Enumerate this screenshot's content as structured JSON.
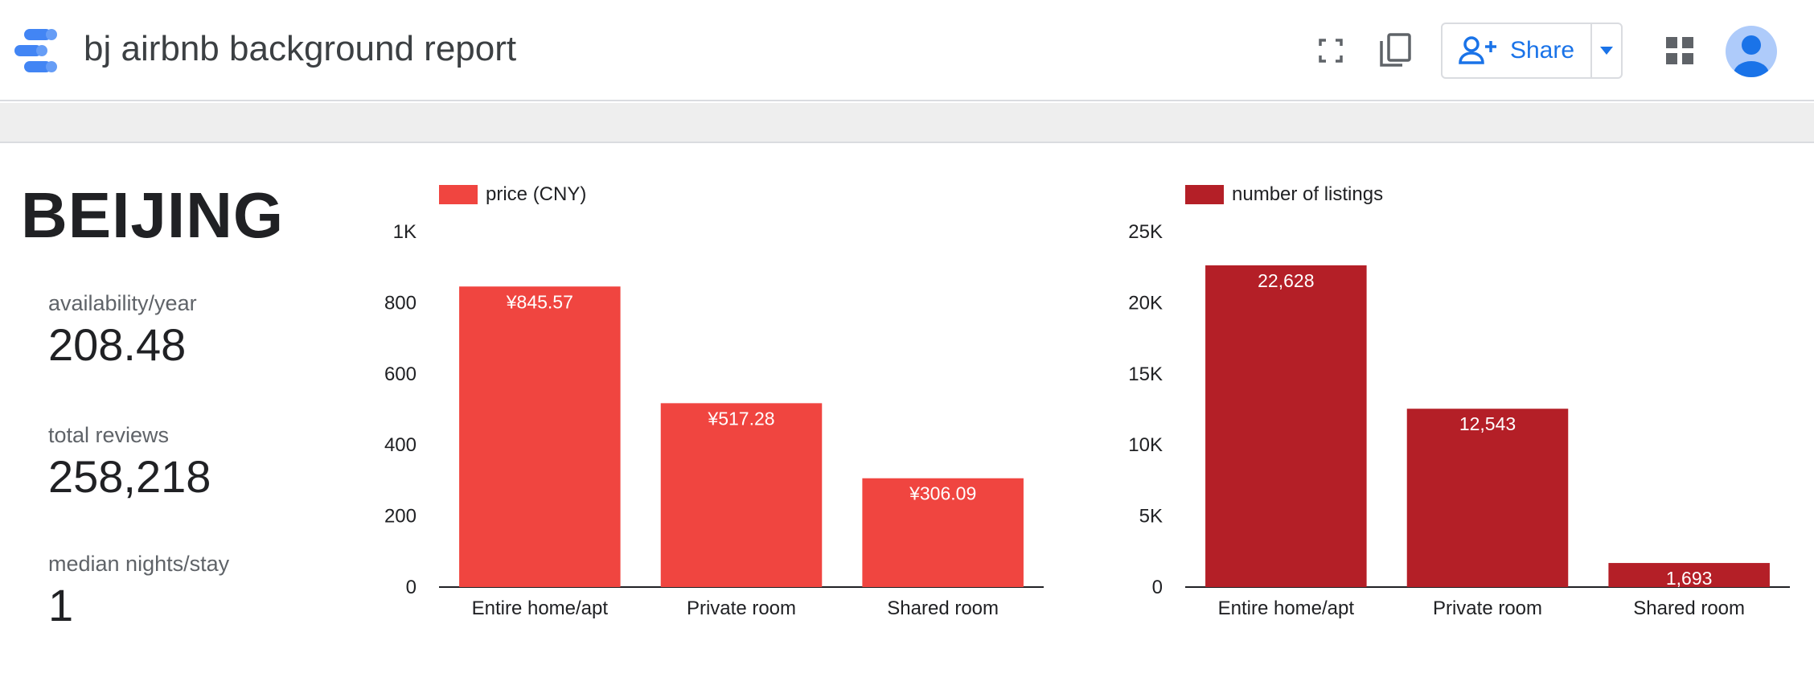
{
  "header": {
    "title": "bj airbnb background report",
    "share_label": "Share",
    "icons": [
      "data-studio-logo",
      "fullscreen-icon",
      "copy-icon",
      "add-person-icon",
      "dropdown-arrow-icon",
      "apps-grid-icon",
      "account-avatar-icon"
    ]
  },
  "colors": {
    "price_bar": "#F04540",
    "listings_bar": "#B41F27",
    "accent": "#1A73E8"
  },
  "scorecards": {
    "city": "BEIJING",
    "availability_label": "availability/year",
    "availability_value": "208.48",
    "reviews_label": "total reviews",
    "reviews_value": "258,218",
    "nights_label": "median nights/stay",
    "nights_value": "1"
  },
  "chart_data": [
    {
      "type": "bar",
      "legend": "price (CNY)",
      "categories": [
        "Entire home/apt",
        "Private room",
        "Shared room"
      ],
      "values": [
        845.57,
        517.28,
        306.09
      ],
      "data_labels": [
        "¥845.57",
        "¥517.28",
        "¥306.09"
      ],
      "ylim": [
        0,
        1000
      ],
      "yticks": [
        0,
        200,
        400,
        600,
        800,
        1000
      ],
      "ytick_labels": [
        "0",
        "200",
        "400",
        "600",
        "800",
        "1K"
      ],
      "legend_position": "top-left",
      "grid": false
    },
    {
      "type": "bar",
      "legend": "number of listings",
      "categories": [
        "Entire home/apt",
        "Private room",
        "Shared room"
      ],
      "values": [
        22628,
        12543,
        1693
      ],
      "data_labels": [
        "22,628",
        "12,543",
        "1,693"
      ],
      "ylim": [
        0,
        25000
      ],
      "yticks": [
        0,
        5000,
        10000,
        15000,
        20000,
        25000
      ],
      "ytick_labels": [
        "0",
        "5K",
        "10K",
        "15K",
        "20K",
        "25K"
      ],
      "legend_position": "top-left",
      "grid": false
    }
  ]
}
